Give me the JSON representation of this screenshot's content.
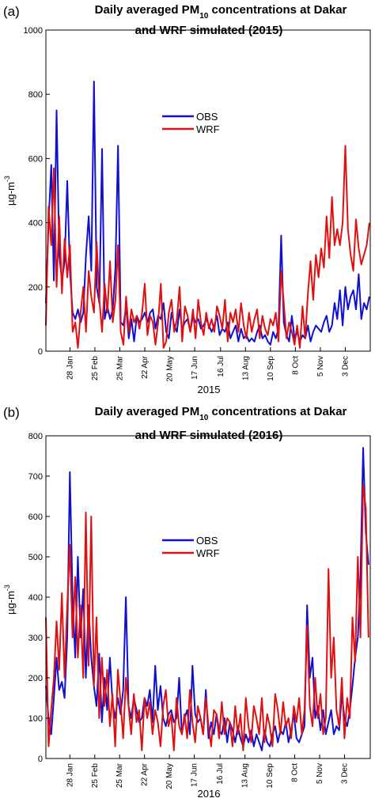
{
  "chart_data": [
    {
      "panel": "a",
      "type": "line",
      "panel_label": "(a)",
      "title_prefix": "Daily averaged PM",
      "title_subscript": "10",
      "title_suffix": " concentrations at Dakar",
      "title_line2": "and WRF simulated (2015)",
      "xlabel": "2015",
      "ylabel": "µg-m",
      "ylabel_sup": "-3",
      "ylim": [
        0,
        1000
      ],
      "yticks": [
        0,
        200,
        400,
        600,
        800,
        1000
      ],
      "xlim": [
        1,
        365
      ],
      "xtick_days": [
        28,
        56,
        84,
        112,
        140,
        168,
        197,
        225,
        253,
        281,
        309,
        337
      ],
      "xtick_labels": [
        "28 Jan",
        "25 Feb",
        "25 Mar",
        "22 Apr",
        "20 May",
        "17 Jun",
        "16 Jul",
        "13 Aug",
        "10 Sep",
        "8 Oct",
        "5 Nov",
        "3 Dec"
      ],
      "legend_position": "upper-center",
      "series": [
        {
          "name": "OBS",
          "color": "#1010d0",
          "x": [
            1,
            4,
            7,
            10,
            13,
            16,
            19,
            22,
            25,
            28,
            31,
            34,
            37,
            40,
            43,
            46,
            49,
            52,
            55,
            58,
            61,
            64,
            67,
            70,
            73,
            76,
            79,
            82,
            85,
            88,
            91,
            94,
            97,
            100,
            103,
            106,
            109,
            112,
            115,
            118,
            121,
            124,
            127,
            130,
            133,
            136,
            139,
            142,
            145,
            148,
            151,
            154,
            157,
            160,
            163,
            166,
            169,
            172,
            175,
            178,
            181,
            184,
            187,
            190,
            193,
            196,
            199,
            202,
            205,
            208,
            211,
            214,
            217,
            220,
            223,
            226,
            229,
            232,
            235,
            238,
            241,
            244,
            247,
            250,
            253,
            256,
            259,
            262,
            265,
            268,
            271,
            274,
            277,
            280,
            283,
            286,
            289,
            292,
            295,
            298,
            301,
            304,
            307,
            310,
            313,
            316,
            319,
            322,
            325,
            328,
            331,
            334,
            337,
            340,
            343,
            346,
            349,
            352,
            355,
            358,
            361,
            364
          ],
          "y": [
            150,
            400,
            580,
            220,
            750,
            300,
            220,
            280,
            530,
            250,
            120,
            100,
            130,
            90,
            120,
            300,
            420,
            250,
            840,
            200,
            150,
            630,
            100,
            140,
            100,
            130,
            260,
            640,
            90,
            80,
            140,
            40,
            100,
            30,
            110,
            90,
            100,
            120,
            90,
            120,
            130,
            70,
            110,
            100,
            150,
            60,
            40,
            120,
            80,
            60,
            130,
            70,
            90,
            100,
            60,
            110,
            90,
            100,
            70,
            80,
            100,
            80,
            60,
            80,
            110,
            50,
            70,
            60,
            90,
            40,
            60,
            80,
            30,
            70,
            40,
            50,
            30,
            40,
            30,
            60,
            80,
            40,
            50,
            30,
            20,
            60,
            40,
            70,
            360,
            90,
            50,
            30,
            110,
            40,
            60,
            30,
            50,
            40,
            80,
            30,
            60,
            80,
            70,
            60,
            90,
            110,
            60,
            80,
            150,
            100,
            190,
            80,
            200,
            130,
            170,
            190,
            130,
            240,
            100,
            150,
            130,
            170
          ]
        },
        {
          "name": "WRF",
          "color": "#e01010",
          "x": [
            1,
            4,
            7,
            10,
            13,
            16,
            19,
            22,
            25,
            28,
            31,
            34,
            37,
            40,
            43,
            46,
            49,
            52,
            55,
            58,
            61,
            64,
            67,
            70,
            73,
            76,
            79,
            82,
            85,
            88,
            91,
            94,
            97,
            100,
            103,
            106,
            109,
            112,
            115,
            118,
            121,
            124,
            127,
            130,
            133,
            136,
            139,
            142,
            145,
            148,
            151,
            154,
            157,
            160,
            163,
            166,
            169,
            172,
            175,
            178,
            181,
            184,
            187,
            190,
            193,
            196,
            199,
            202,
            205,
            208,
            211,
            214,
            217,
            220,
            223,
            226,
            229,
            232,
            235,
            238,
            241,
            244,
            247,
            250,
            253,
            256,
            259,
            262,
            265,
            268,
            271,
            274,
            277,
            280,
            283,
            286,
            289,
            292,
            295,
            298,
            301,
            304,
            307,
            310,
            313,
            316,
            319,
            322,
            325,
            328,
            331,
            334,
            337,
            340,
            343,
            346,
            349,
            352,
            355,
            358,
            361,
            364
          ],
          "y": [
            80,
            450,
            330,
            570,
            200,
            420,
            180,
            350,
            230,
            330,
            60,
            90,
            10,
            120,
            200,
            60,
            250,
            170,
            120,
            340,
            160,
            60,
            210,
            120,
            280,
            90,
            160,
            330,
            60,
            20,
            170,
            60,
            130,
            90,
            110,
            70,
            120,
            210,
            50,
            110,
            90,
            20,
            90,
            210,
            10,
            30,
            120,
            160,
            60,
            100,
            200,
            30,
            140,
            110,
            60,
            130,
            40,
            160,
            90,
            50,
            120,
            70,
            100,
            60,
            140,
            110,
            70,
            160,
            30,
            120,
            90,
            130,
            60,
            150,
            80,
            40,
            120,
            60,
            100,
            130,
            40,
            110,
            70,
            50,
            100,
            80,
            120,
            30,
            250,
            150,
            40,
            90,
            60,
            20,
            80,
            10,
            140,
            40,
            180,
            280,
            160,
            300,
            230,
            320,
            260,
            420,
            290,
            480,
            330,
            380,
            330,
            400,
            640,
            380,
            300,
            250,
            410,
            320,
            270,
            300,
            330,
            400
          ]
        }
      ]
    },
    {
      "panel": "b",
      "type": "line",
      "panel_label": "(b)",
      "title_prefix": "Daily averaged PM",
      "title_subscript": "10",
      "title_suffix": " concentrations at Dakar",
      "title_line2": "and WRF simulated (2016)",
      "xlabel": "2016",
      "ylabel": "µg-m",
      "ylabel_sup": "-3",
      "ylim": [
        0,
        800
      ],
      "yticks": [
        0,
        100,
        200,
        300,
        400,
        500,
        600,
        700,
        800
      ],
      "xlim": [
        1,
        366
      ],
      "xtick_days": [
        28,
        56,
        84,
        112,
        140,
        168,
        197,
        225,
        253,
        281,
        309,
        337
      ],
      "xtick_labels": [
        "28 Jan",
        "25 Feb",
        "25 Mar",
        "22 Apr",
        "20 May",
        "17 Jun",
        "16 Jul",
        "13 Aug",
        "10 Sep",
        "8 Oct",
        "5 Nov",
        "3 Dec"
      ],
      "legend_position": "center",
      "series": [
        {
          "name": "OBS",
          "color": "#1010d0",
          "x": [
            1,
            4,
            7,
            10,
            13,
            16,
            19,
            22,
            25,
            28,
            31,
            34,
            37,
            40,
            43,
            46,
            49,
            52,
            55,
            58,
            61,
            64,
            67,
            70,
            73,
            76,
            79,
            82,
            85,
            88,
            91,
            94,
            97,
            100,
            103,
            106,
            109,
            112,
            115,
            118,
            121,
            124,
            127,
            130,
            133,
            136,
            139,
            142,
            145,
            148,
            151,
            154,
            157,
            160,
            163,
            166,
            169,
            172,
            175,
            178,
            181,
            184,
            187,
            190,
            193,
            196,
            199,
            202,
            205,
            208,
            211,
            214,
            217,
            220,
            223,
            226,
            229,
            232,
            235,
            238,
            241,
            244,
            247,
            250,
            253,
            256,
            259,
            262,
            265,
            268,
            271,
            274,
            277,
            280,
            283,
            286,
            289,
            292,
            295,
            298,
            301,
            304,
            307,
            310,
            313,
            316,
            319,
            322,
            325,
            328,
            331,
            334,
            337,
            340,
            343,
            346,
            349,
            352,
            355,
            358,
            361,
            364
          ],
          "y": [
            180,
            100,
            60,
            150,
            250,
            170,
            190,
            150,
            300,
            710,
            400,
            250,
            500,
            300,
            420,
            200,
            380,
            250,
            180,
            130,
            260,
            90,
            200,
            120,
            250,
            140,
            100,
            150,
            110,
            170,
            400,
            130,
            100,
            150,
            120,
            90,
            100,
            150,
            130,
            170,
            90,
            230,
            120,
            180,
            100,
            80,
            110,
            120,
            90,
            100,
            200,
            60,
            100,
            120,
            60,
            230,
            110,
            90,
            100,
            60,
            170,
            50,
            90,
            60,
            110,
            70,
            60,
            100,
            40,
            90,
            70,
            40,
            80,
            50,
            30,
            60,
            40,
            70,
            30,
            60,
            40,
            20,
            70,
            40,
            30,
            60,
            80,
            40,
            70,
            60,
            90,
            40,
            70,
            110,
            50,
            40,
            60,
            80,
            380,
            200,
            250,
            100,
            130,
            70,
            120,
            60,
            90,
            120,
            60,
            80,
            70,
            160,
            100,
            80,
            120,
            180,
            250,
            300,
            450,
            770,
            560,
            480
          ]
        },
        {
          "name": "WRF",
          "color": "#e01010",
          "x": [
            1,
            4,
            7,
            10,
            13,
            16,
            19,
            22,
            25,
            28,
            31,
            34,
            37,
            40,
            43,
            46,
            49,
            52,
            55,
            58,
            61,
            64,
            67,
            70,
            73,
            76,
            79,
            82,
            85,
            88,
            91,
            94,
            97,
            100,
            103,
            106,
            109,
            112,
            115,
            118,
            121,
            124,
            127,
            130,
            133,
            136,
            139,
            142,
            145,
            148,
            151,
            154,
            157,
            160,
            163,
            166,
            169,
            172,
            175,
            178,
            181,
            184,
            187,
            190,
            193,
            196,
            199,
            202,
            205,
            208,
            211,
            214,
            217,
            220,
            223,
            226,
            229,
            232,
            235,
            238,
            241,
            244,
            247,
            250,
            253,
            256,
            259,
            262,
            265,
            268,
            271,
            274,
            277,
            280,
            283,
            286,
            289,
            292,
            295,
            298,
            301,
            304,
            307,
            310,
            313,
            316,
            319,
            322,
            325,
            328,
            331,
            334,
            337,
            340,
            343,
            346,
            349,
            352,
            355,
            358,
            361,
            364
          ],
          "y": [
            350,
            30,
            120,
            200,
            340,
            220,
            410,
            200,
            380,
            530,
            300,
            450,
            250,
            380,
            200,
            610,
            230,
            600,
            180,
            350,
            100,
            250,
            130,
            220,
            80,
            160,
            30,
            220,
            140,
            50,
            200,
            130,
            60,
            160,
            90,
            120,
            20,
            150,
            100,
            140,
            60,
            120,
            90,
            30,
            130,
            170,
            80,
            110,
            20,
            150,
            80,
            60,
            110,
            50,
            170,
            90,
            40,
            130,
            100,
            60,
            150,
            80,
            30,
            120,
            110,
            50,
            140,
            60,
            100,
            90,
            30,
            130,
            60,
            110,
            20,
            150,
            80,
            40,
            130,
            100,
            60,
            150,
            40,
            110,
            80,
            30,
            160,
            120,
            60,
            140,
            80,
            100,
            50,
            130,
            90,
            150,
            60,
            120,
            330,
            130,
            80,
            200,
            100,
            160,
            60,
            100,
            470,
            200,
            300,
            120,
            80,
            200,
            50,
            150,
            100,
            350,
            240,
            500,
            300,
            680,
            620,
            300
          ]
        }
      ]
    }
  ]
}
